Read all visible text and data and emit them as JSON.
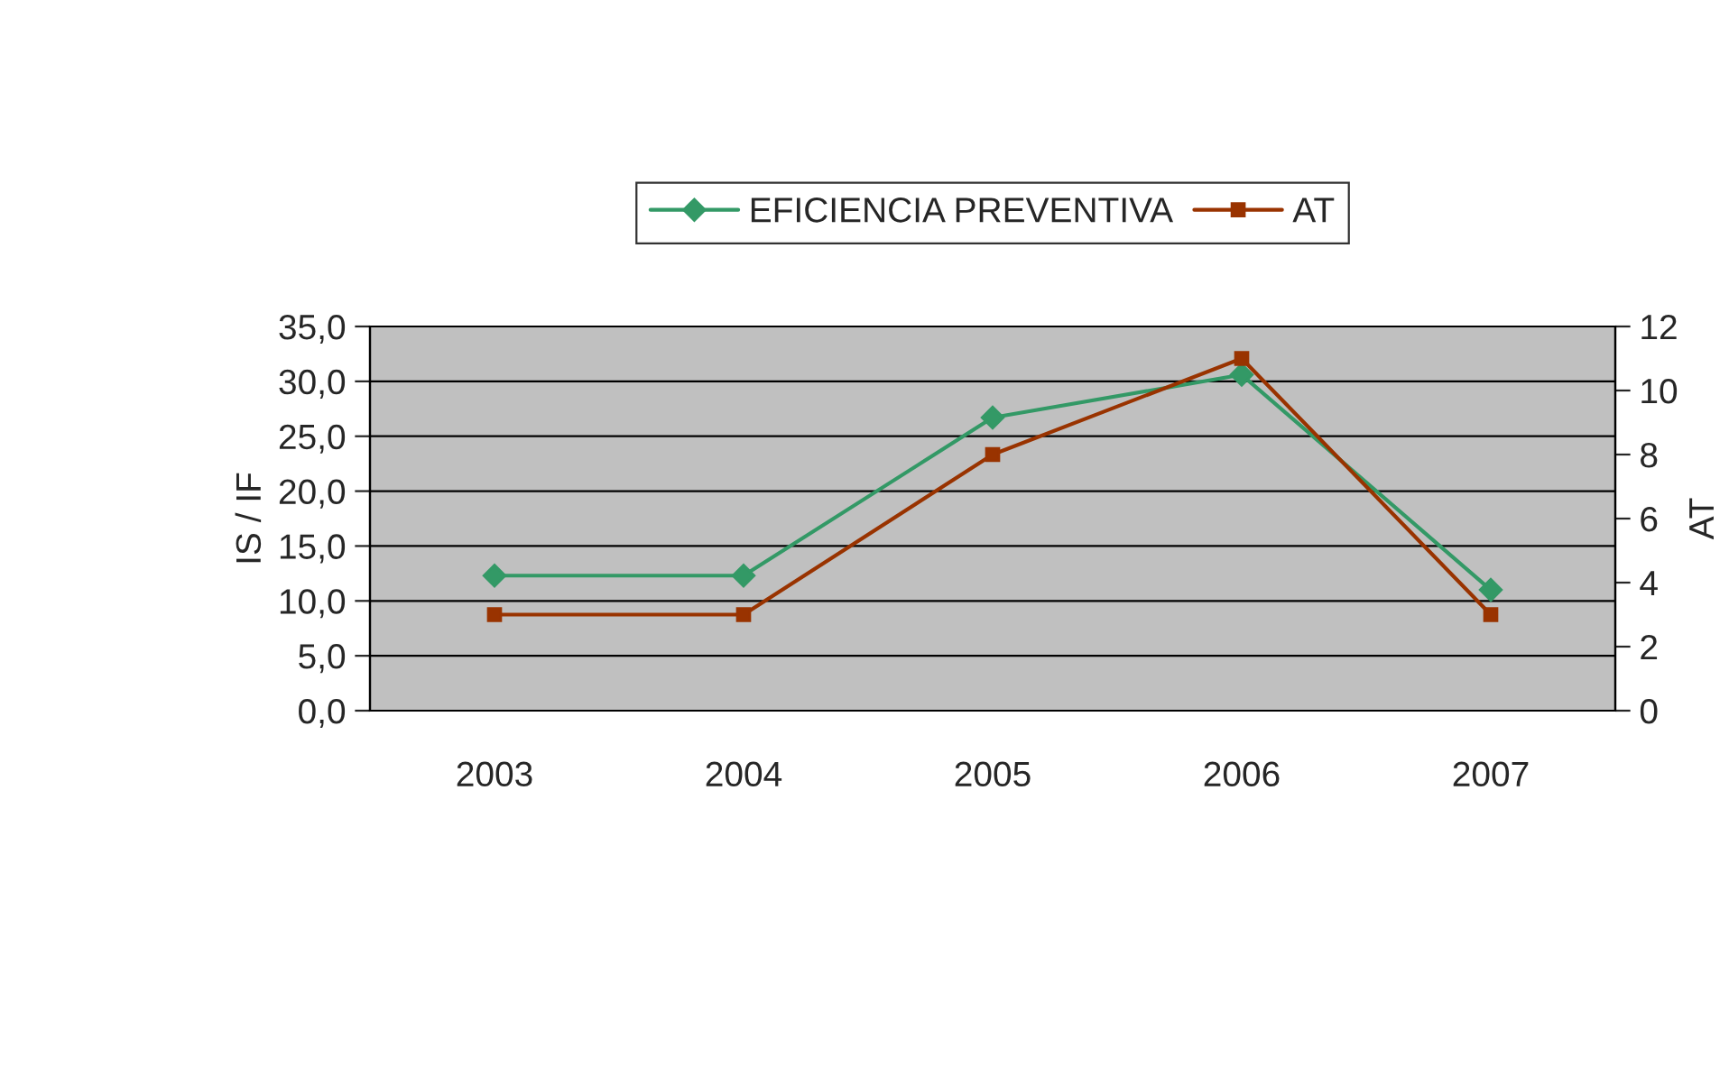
{
  "chart_data": {
    "type": "line",
    "ylabel": "IS / IF",
    "y2label": "AT",
    "categories": [
      "2003",
      "2004",
      "2005",
      "2006",
      "2007"
    ],
    "series": [
      {
        "name": "EFICIENCIA PREVENTIVA",
        "color": "#339966",
        "marker": "diamond",
        "values": [
          12.3,
          12.3,
          26.7,
          30.6,
          11.0
        ]
      },
      {
        "name": "AT",
        "color": "#993300",
        "marker": "square",
        "axis": "y2",
        "values": [
          3,
          3,
          8,
          11,
          3
        ]
      }
    ],
    "ylim": [
      0,
      35
    ],
    "yticks": [
      {
        "value": 0,
        "label": "0,0"
      },
      {
        "value": 5,
        "label": "5,0"
      },
      {
        "value": 10,
        "label": "10,0"
      },
      {
        "value": 15,
        "label": "15,0"
      },
      {
        "value": 20,
        "label": "20,0"
      },
      {
        "value": 25,
        "label": "25,0"
      },
      {
        "value": 30,
        "label": "30,0"
      },
      {
        "value": 35,
        "label": "35,0"
      }
    ],
    "y2lim": [
      0,
      12
    ],
    "y2ticks": [
      0,
      2,
      4,
      6,
      8,
      10,
      12
    ],
    "grid": "y",
    "legend": "top",
    "line_style": "solid"
  }
}
